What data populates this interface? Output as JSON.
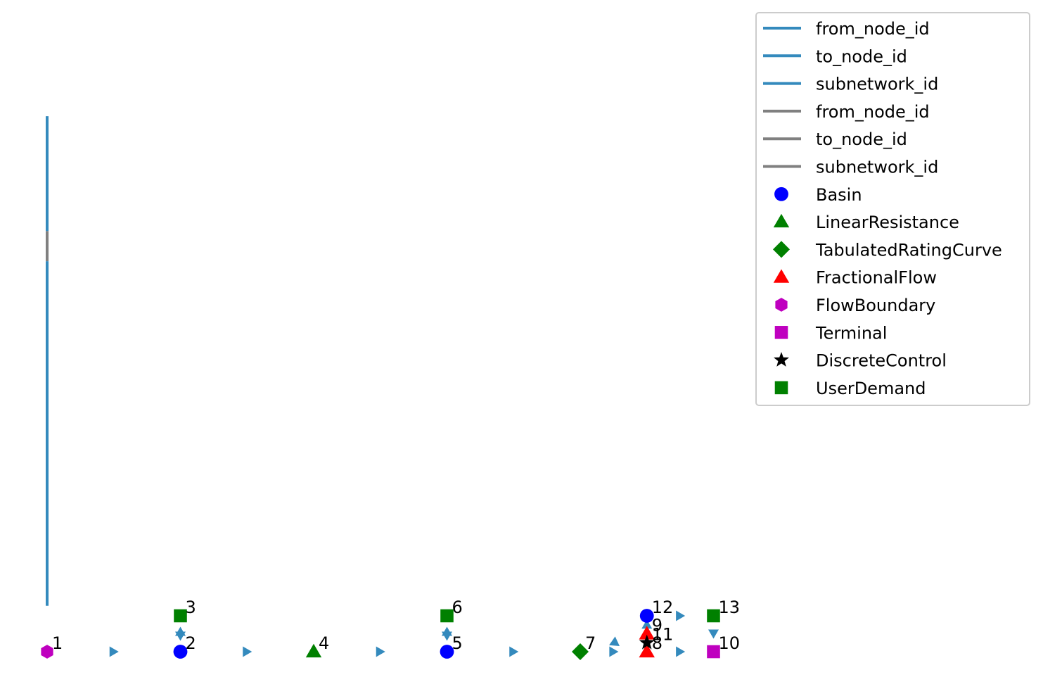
{
  "chart_data": {
    "type": "scatter",
    "title": "",
    "xlabel": "",
    "ylabel": "",
    "axes_visible": false,
    "grid": false,
    "legend_placement": "top-right",
    "xlim": [
      -0.25,
      11.6
    ],
    "ylim": [
      -0.15,
      4.5
    ],
    "nodes": [
      {
        "id": "1",
        "type": "FlowBoundary",
        "x": 0.0,
        "y": 0.0
      },
      {
        "id": "2",
        "type": "Basin",
        "x": 1.0,
        "y": 0.0
      },
      {
        "id": "3",
        "type": "UserDemand",
        "x": 1.0,
        "y": 0.25
      },
      {
        "id": "4",
        "type": "LinearResistance",
        "x": 2.0,
        "y": 0.0
      },
      {
        "id": "5",
        "type": "Basin",
        "x": 3.0,
        "y": 0.0
      },
      {
        "id": "6",
        "type": "UserDemand",
        "x": 3.0,
        "y": 0.25
      },
      {
        "id": "7",
        "type": "TabulatedRatingCurve",
        "x": 4.0,
        "y": 0.0
      },
      {
        "id": "8",
        "type": "FractionalFlow",
        "x": 4.5,
        "y": 0.0
      },
      {
        "id": "9",
        "type": "FractionalFlow",
        "x": 4.5,
        "y": 0.125
      },
      {
        "id": "10",
        "type": "Terminal",
        "x": 5.0,
        "y": 0.0
      },
      {
        "id": "11",
        "type": "DiscreteControl",
        "x": 4.5,
        "y": 0.0625
      },
      {
        "id": "12",
        "type": "Basin",
        "x": 4.5,
        "y": 0.25
      },
      {
        "id": "13",
        "type": "UserDemand",
        "x": 5.0,
        "y": 0.25
      }
    ],
    "edge_arrows": [
      {
        "x": 0.5,
        "y": 0.0,
        "dir": "right"
      },
      {
        "x": 1.5,
        "y": 0.0,
        "dir": "right"
      },
      {
        "x": 2.5,
        "y": 0.0,
        "dir": "right"
      },
      {
        "x": 3.5,
        "y": 0.0,
        "dir": "right"
      },
      {
        "x": 4.25,
        "y": 0.0,
        "dir": "right"
      },
      {
        "x": 4.75,
        "y": 0.0,
        "dir": "right"
      },
      {
        "x": 4.75,
        "y": 0.25,
        "dir": "right"
      },
      {
        "x": 5.0,
        "y": 0.125,
        "dir": "down"
      },
      {
        "x": 4.5,
        "y": 0.19,
        "dir": "up"
      },
      {
        "x": 4.25,
        "y": 0.06,
        "dir": "down-left"
      },
      {
        "x": 1.0,
        "y": 0.14,
        "dir": "up"
      },
      {
        "x": 1.0,
        "y": 0.11,
        "dir": "down"
      },
      {
        "x": 3.0,
        "y": 0.14,
        "dir": "up"
      },
      {
        "x": 3.0,
        "y": 0.11,
        "dir": "down"
      }
    ],
    "legend": [
      {
        "label": "from_node_id",
        "kind": "line",
        "color": "#348abd"
      },
      {
        "label": "to_node_id",
        "kind": "line",
        "color": "#348abd"
      },
      {
        "label": "subnetwork_id",
        "kind": "line",
        "color": "#348abd"
      },
      {
        "label": "from_node_id",
        "kind": "line",
        "color": "#808080"
      },
      {
        "label": "to_node_id",
        "kind": "line",
        "color": "#808080"
      },
      {
        "label": "subnetwork_id",
        "kind": "line",
        "color": "#808080"
      },
      {
        "label": "Basin",
        "kind": "marker",
        "marker": "circle",
        "color": "#0000ff"
      },
      {
        "label": "LinearResistance",
        "kind": "marker",
        "marker": "triangle",
        "color": "#008000"
      },
      {
        "label": "TabulatedRatingCurve",
        "kind": "marker",
        "marker": "diamond",
        "color": "#008000"
      },
      {
        "label": "FractionalFlow",
        "kind": "marker",
        "marker": "triangle",
        "color": "#ff0000"
      },
      {
        "label": "FlowBoundary",
        "kind": "marker",
        "marker": "hexagon",
        "color": "#bf00bf"
      },
      {
        "label": "Terminal",
        "kind": "marker",
        "marker": "square",
        "color": "#bf00bf"
      },
      {
        "label": "DiscreteControl",
        "kind": "marker",
        "marker": "star",
        "color": "#000000"
      },
      {
        "label": "UserDemand",
        "kind": "marker",
        "marker": "square",
        "color": "#008000"
      }
    ],
    "vertical_line": {
      "x": 0.0,
      "segments": [
        {
          "from": 0.32,
          "to": 2.72,
          "color": "#348abd"
        },
        {
          "from": 2.72,
          "to": 2.93,
          "color": "#808080"
        },
        {
          "from": 2.93,
          "to": 3.73,
          "color": "#348abd"
        }
      ]
    },
    "marker_styles": {
      "Basin": {
        "marker": "circle",
        "color": "#0000ff"
      },
      "LinearResistance": {
        "marker": "triangle",
        "color": "#008000"
      },
      "TabulatedRatingCurve": {
        "marker": "diamond",
        "color": "#008000"
      },
      "FractionalFlow": {
        "marker": "triangle",
        "color": "#ff0000"
      },
      "FlowBoundary": {
        "marker": "hexagon",
        "color": "#bf00bf"
      },
      "Terminal": {
        "marker": "square",
        "color": "#bf00bf"
      },
      "DiscreteControl": {
        "marker": "star",
        "color": "#000000"
      },
      "UserDemand": {
        "marker": "square",
        "color": "#008000"
      }
    },
    "edge_color": "#348abd"
  }
}
